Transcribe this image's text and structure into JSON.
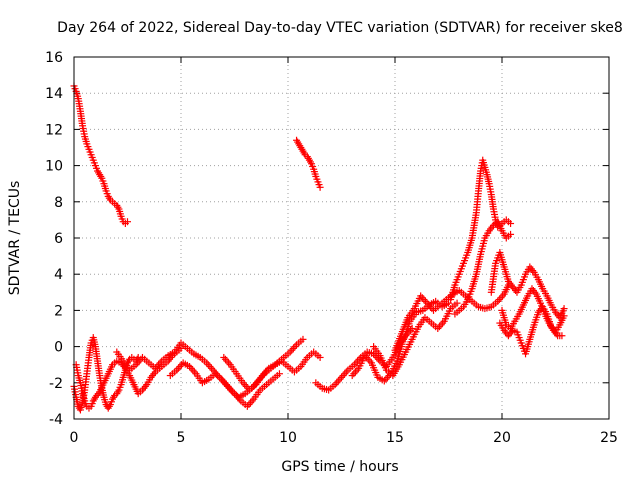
{
  "chart_data": {
    "type": "scatter",
    "title": "Day 264 of 2022, Sidereal Day-to-day VTEC variation (SDTVAR) for receiver ske8",
    "xlabel": "GPS time / hours",
    "ylabel": "SDTVAR / TECUs",
    "xlim": [
      0,
      25
    ],
    "ylim": [
      -4,
      16
    ],
    "xticks": [
      0,
      5,
      10,
      15,
      20,
      25
    ],
    "yticks": [
      -4,
      -2,
      0,
      2,
      4,
      6,
      8,
      10,
      12,
      14,
      16
    ],
    "grid": true,
    "marker": "plus",
    "color": "#ff0000",
    "series": [
      {
        "name": "seg_high_early",
        "x": [
          0.0,
          0.1,
          0.2,
          0.3,
          0.4,
          0.5,
          0.6,
          0.7,
          0.8,
          0.9,
          1.0,
          1.1,
          1.2,
          1.3,
          1.4,
          1.5,
          1.6,
          1.7,
          1.8,
          1.9,
          2.0,
          2.1,
          2.2,
          2.3,
          2.4,
          2.5
        ],
        "y": [
          14.4,
          14.1,
          13.7,
          13.0,
          12.2,
          11.6,
          11.2,
          10.9,
          10.6,
          10.3,
          10.0,
          9.7,
          9.5,
          9.3,
          9.0,
          8.6,
          8.3,
          8.1,
          8.0,
          7.9,
          7.8,
          7.6,
          7.2,
          6.9,
          6.8,
          6.9
        ]
      },
      {
        "name": "seg_high_mid",
        "x": [
          10.4,
          10.5,
          10.6,
          10.7,
          10.8,
          10.9,
          11.0,
          11.1,
          11.2,
          11.3,
          11.4,
          11.5
        ],
        "y": [
          11.4,
          11.2,
          11.0,
          10.8,
          10.6,
          10.5,
          10.3,
          10.1,
          9.8,
          9.4,
          9.1,
          8.8
        ]
      },
      {
        "name": "seg_low_1",
        "x": [
          0.0,
          0.1,
          0.2,
          0.3,
          0.4,
          0.5,
          0.6,
          0.7,
          0.8,
          0.9,
          1.0,
          1.1,
          1.2,
          1.3,
          1.4,
          1.5,
          1.6,
          1.7,
          1.8,
          1.9,
          2.0,
          2.1,
          2.2,
          2.3,
          2.4,
          2.5,
          2.6,
          2.7,
          2.8,
          2.9,
          3.0
        ],
        "y": [
          -2.2,
          -2.8,
          -3.3,
          -3.5,
          -3.1,
          -2.4,
          -1.5,
          -0.6,
          0.2,
          0.5,
          0.0,
          -0.8,
          -1.6,
          -2.3,
          -2.8,
          -3.2,
          -3.4,
          -3.2,
          -2.9,
          -2.7,
          -2.6,
          -2.4,
          -2.1,
          -1.7,
          -1.3,
          -0.9,
          -0.7,
          -0.6,
          -0.7,
          -0.8,
          -0.6
        ]
      },
      {
        "name": "seg_low_2",
        "x": [
          0.1,
          0.2,
          0.3,
          0.4,
          0.5,
          0.6,
          0.7,
          0.8,
          0.9,
          1.0,
          1.2,
          1.4,
          1.6,
          1.8,
          2.0,
          2.2,
          2.4,
          2.6,
          2.8,
          3.0,
          3.2,
          3.4,
          3.6,
          3.8,
          4.0,
          4.2,
          4.4,
          4.6,
          4.8,
          5.0
        ],
        "y": [
          -1.0,
          -1.6,
          -2.0,
          -2.6,
          -3.0,
          -3.3,
          -3.4,
          -3.3,
          -3.0,
          -2.8,
          -2.5,
          -2.0,
          -1.5,
          -1.0,
          -0.8,
          -0.9,
          -1.2,
          -1.6,
          -2.1,
          -2.6,
          -2.4,
          -2.1,
          -1.7,
          -1.4,
          -1.2,
          -1.0,
          -0.8,
          -0.5,
          -0.3,
          -0.1
        ]
      },
      {
        "name": "seg_low_3",
        "x": [
          2.0,
          2.3,
          2.6,
          2.9,
          3.2,
          3.5,
          3.8,
          4.1,
          4.4,
          4.7,
          5.0,
          5.3,
          5.6,
          5.9,
          6.2,
          6.5,
          6.8,
          7.1,
          7.4,
          7.7,
          8.0,
          8.3,
          8.6,
          8.9,
          9.2,
          9.5,
          9.8,
          10.1,
          10.4,
          10.7
        ],
        "y": [
          -0.3,
          -0.8,
          -1.3,
          -1.0,
          -0.6,
          -0.9,
          -1.2,
          -0.8,
          -0.5,
          -0.3,
          0.2,
          -0.1,
          -0.4,
          -0.6,
          -0.9,
          -1.3,
          -1.7,
          -2.1,
          -2.5,
          -2.8,
          -2.6,
          -2.3,
          -1.9,
          -1.5,
          -1.2,
          -0.9,
          -0.6,
          -0.3,
          0.1,
          0.4
        ]
      },
      {
        "name": "seg_low_4",
        "x": [
          4.5,
          4.8,
          5.1,
          5.4,
          5.7,
          6.0,
          6.3,
          6.6,
          6.9,
          7.2,
          7.5,
          7.8,
          8.1,
          8.4,
          8.7,
          9.0,
          9.3,
          9.6
        ],
        "y": [
          -1.6,
          -1.3,
          -0.9,
          -1.1,
          -1.5,
          -2.0,
          -1.8,
          -1.5,
          -1.8,
          -2.2,
          -2.6,
          -3.0,
          -3.3,
          -2.9,
          -2.4,
          -2.1,
          -1.8,
          -1.5
        ]
      },
      {
        "name": "seg_low_5",
        "x": [
          7.0,
          7.3,
          7.6,
          7.9,
          8.2,
          8.5,
          8.8,
          9.1,
          9.4,
          9.7,
          10.0,
          10.3,
          10.6,
          10.9,
          11.2,
          11.5
        ],
        "y": [
          -0.6,
          -1.0,
          -1.5,
          -2.0,
          -2.4,
          -2.1,
          -1.6,
          -1.2,
          -1.0,
          -0.8,
          -1.1,
          -1.4,
          -1.1,
          -0.6,
          -0.3,
          -0.6
        ]
      },
      {
        "name": "seg_low_6",
        "x": [
          11.3,
          11.6,
          11.9,
          12.2,
          12.5,
          12.8,
          13.1,
          13.4,
          13.7,
          14.0,
          14.3,
          14.6,
          14.9,
          15.2,
          15.5,
          15.8
        ],
        "y": [
          -2.0,
          -2.3,
          -2.4,
          -2.1,
          -1.7,
          -1.3,
          -1.0,
          -0.6,
          -0.3,
          -0.4,
          -0.8,
          -1.1,
          -0.6,
          0.1,
          0.6,
          1.0
        ]
      },
      {
        "name": "seg_low_7",
        "x": [
          13.0,
          13.3,
          13.6,
          13.9,
          14.2,
          14.5,
          14.8,
          15.1,
          15.4,
          15.7,
          16.0,
          16.3,
          16.6,
          16.9,
          17.2,
          17.5
        ],
        "y": [
          -1.6,
          -1.2,
          -0.5,
          -0.9,
          -1.7,
          -1.9,
          -1.5,
          -0.8,
          0.4,
          1.4,
          1.9,
          2.0,
          2.3,
          2.5,
          2.2,
          2.4
        ]
      },
      {
        "name": "seg_low_8",
        "x": [
          14.0,
          14.3,
          14.6,
          14.9,
          15.2,
          15.5,
          15.8,
          16.1,
          16.4,
          16.7,
          17.0,
          17.3,
          17.6,
          17.9
        ],
        "y": [
          0.0,
          -0.5,
          -1.3,
          -1.6,
          -1.0,
          -0.3,
          0.4,
          1.1,
          1.6,
          1.3,
          1.0,
          1.4,
          2.1,
          2.4
        ]
      },
      {
        "name": "seg_rise_1",
        "x": [
          15.0,
          15.3,
          15.6,
          15.9,
          16.2,
          16.5,
          16.8,
          17.1,
          17.4,
          17.7,
          18.0,
          18.3,
          18.6,
          18.9,
          19.2,
          19.5,
          19.8,
          20.1,
          20.3
        ],
        "y": [
          -0.2,
          0.7,
          1.6,
          2.1,
          2.8,
          2.4,
          2.0,
          2.3,
          2.6,
          2.9,
          3.1,
          2.8,
          2.5,
          2.2,
          2.1,
          2.2,
          2.5,
          2.9,
          3.4
        ]
      },
      {
        "name": "seg_peak",
        "x": [
          17.6,
          17.8,
          18.0,
          18.2,
          18.4,
          18.6,
          18.8,
          18.9,
          19.0,
          19.1,
          19.2,
          19.3,
          19.4,
          19.5,
          19.6,
          19.7,
          19.8,
          20.0,
          20.2,
          20.4
        ],
        "y": [
          2.6,
          3.4,
          4.0,
          4.6,
          5.2,
          6.0,
          7.4,
          8.6,
          9.7,
          10.3,
          9.9,
          9.5,
          9.0,
          8.4,
          7.6,
          7.0,
          6.6,
          6.8,
          7.0,
          6.8
        ]
      },
      {
        "name": "seg_peak_2",
        "x": [
          17.8,
          18.0,
          18.2,
          18.4,
          18.6,
          18.8,
          19.0,
          19.2,
          19.4,
          19.6,
          19.8,
          20.0,
          20.2,
          20.4
        ],
        "y": [
          1.8,
          2.0,
          2.2,
          2.6,
          3.2,
          4.0,
          5.1,
          6.0,
          6.4,
          6.7,
          6.9,
          6.4,
          6.0,
          6.2
        ]
      },
      {
        "name": "seg_late_1",
        "x": [
          19.5,
          19.7,
          19.9,
          20.1,
          20.3,
          20.5,
          20.7,
          20.9,
          21.1,
          21.3,
          21.5,
          21.7,
          21.9,
          22.1,
          22.3,
          22.5,
          22.7,
          22.9
        ],
        "y": [
          3.0,
          4.6,
          5.2,
          4.4,
          3.6,
          3.3,
          3.0,
          3.4,
          4.0,
          4.4,
          4.1,
          3.7,
          3.2,
          2.8,
          2.3,
          1.9,
          1.6,
          2.1
        ]
      },
      {
        "name": "seg_late_2",
        "x": [
          20.0,
          20.2,
          20.4,
          20.6,
          20.8,
          21.0,
          21.2,
          21.4,
          21.6,
          21.8,
          22.0,
          22.2,
          22.4,
          22.6,
          22.8
        ],
        "y": [
          2.0,
          1.2,
          1.0,
          1.4,
          1.8,
          2.3,
          2.8,
          3.2,
          2.9,
          2.4,
          1.8,
          1.3,
          0.9,
          0.6,
          0.6
        ]
      },
      {
        "name": "seg_late_3",
        "x": [
          19.9,
          20.1,
          20.3,
          20.5,
          20.7,
          20.9,
          21.1,
          21.3,
          21.5,
          21.7,
          21.9,
          22.1,
          22.3,
          22.5,
          22.7,
          22.9
        ],
        "y": [
          1.3,
          0.9,
          0.6,
          0.9,
          0.8,
          0.2,
          -0.4,
          0.4,
          1.2,
          1.9,
          2.2,
          1.8,
          1.1,
          0.8,
          1.2,
          1.7
        ]
      }
    ]
  }
}
